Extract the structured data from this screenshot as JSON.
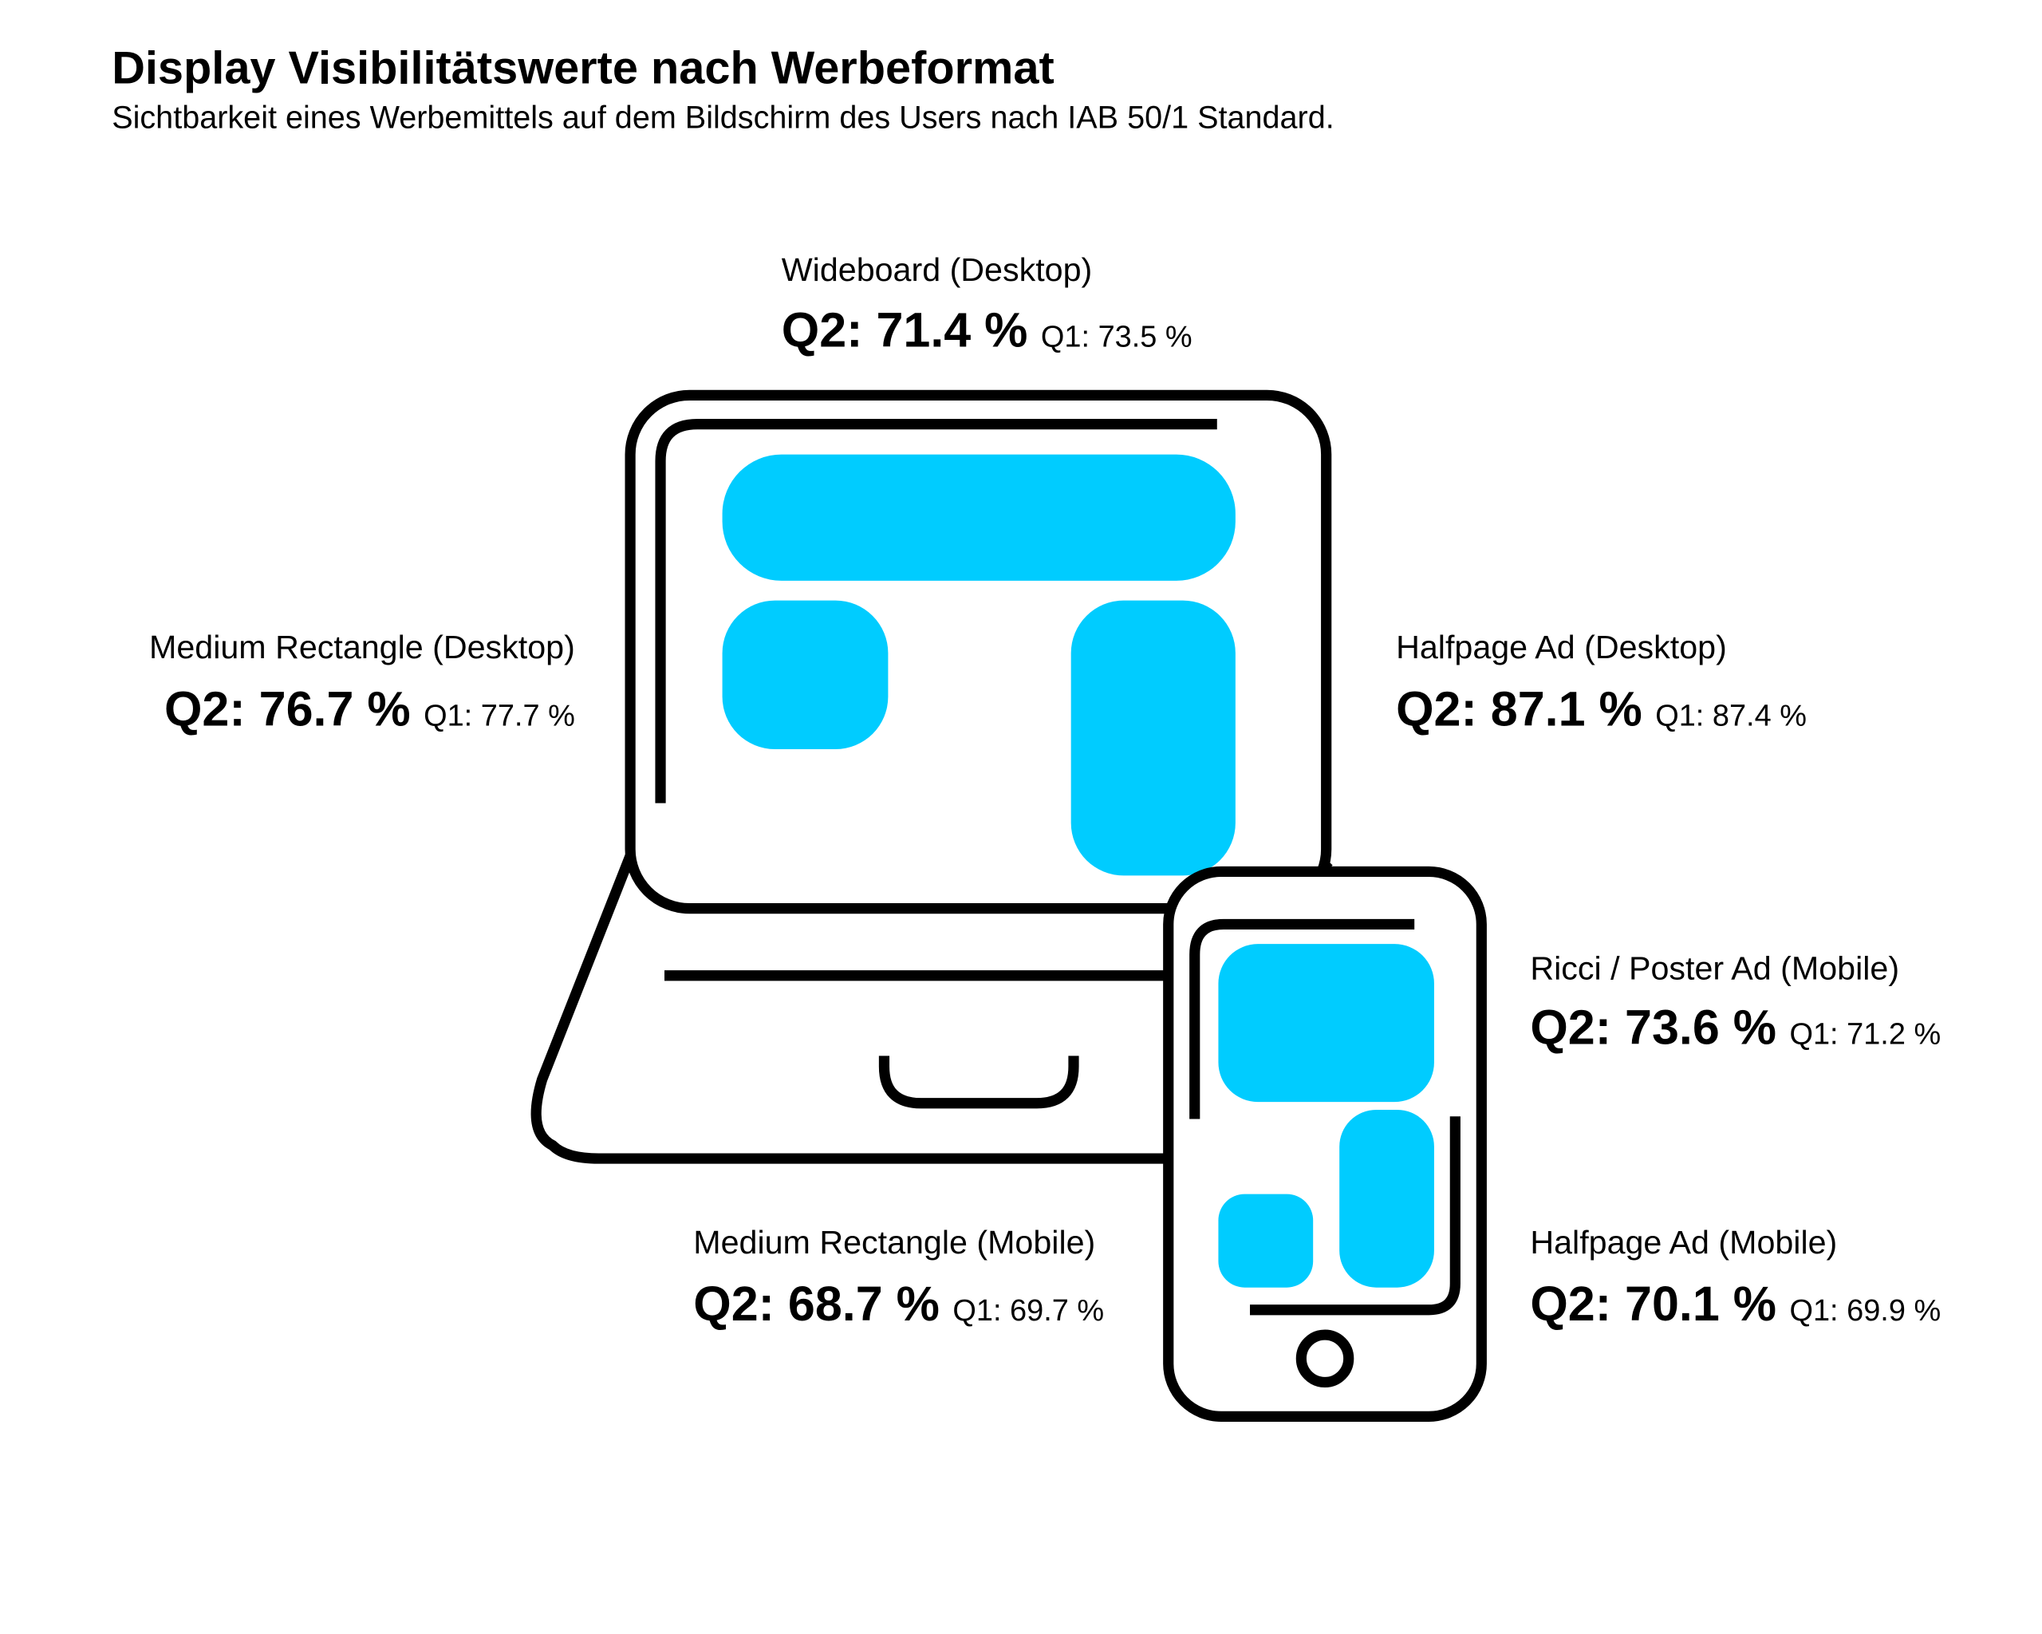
{
  "header": {
    "title": "Display Visibilitätswerte nach Werbeformat",
    "subtitle": "Sichtbarkeit eines Werbemittels auf dem Bildschirm des Users nach IAB 50/1 Standard."
  },
  "items": [
    {
      "name": "Wideboard (Desktop)",
      "q2": "Q2: 71.4 %",
      "q1": "Q1: 73.5 %"
    },
    {
      "name": "Medium Rectangle (Desktop)",
      "q2": "Q2: 76.7 %",
      "q1": "Q1: 77.7 %"
    },
    {
      "name": "Halfpage Ad (Desktop)",
      "q2": "Q2: 87.1 %",
      "q1": "Q1: 87.4 %"
    },
    {
      "name": "Ricci / Poster Ad (Mobile)",
      "q2": "Q2: 73.6 %",
      "q1": "Q1: 71.2 %"
    },
    {
      "name": "Medium Rectangle (Mobile)",
      "q2": "Q2: 68.7 %",
      "q1": "Q1: 69.7 %"
    },
    {
      "name": "Halfpage Ad (Mobile)",
      "q2": "Q2: 70.1 %",
      "q1": "Q1: 69.9 %"
    }
  ]
}
